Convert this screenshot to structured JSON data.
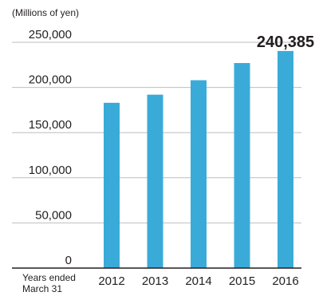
{
  "chart_data": {
    "type": "bar",
    "unit_label": "(Millions of yen)",
    "x_note_line1": "Years ended",
    "x_note_line2": "March 31",
    "categories": [
      "2012",
      "2013",
      "2014",
      "2015",
      "2016"
    ],
    "values": [
      183000,
      192000,
      208000,
      227000,
      240385
    ],
    "data_labels": [
      "",
      "",
      "",
      "",
      "240,385"
    ],
    "ylim": [
      0,
      250000
    ],
    "yticks": [
      0,
      50000,
      100000,
      150000,
      200000,
      250000
    ],
    "ytick_labels": [
      "0",
      "50,000",
      "100,000",
      "150,000",
      "200,000",
      "250,000"
    ],
    "grid": "horizontal",
    "bar_color": "#3aabd8",
    "grid_color": "#bcbec0",
    "axis_color": "#231f20"
  }
}
